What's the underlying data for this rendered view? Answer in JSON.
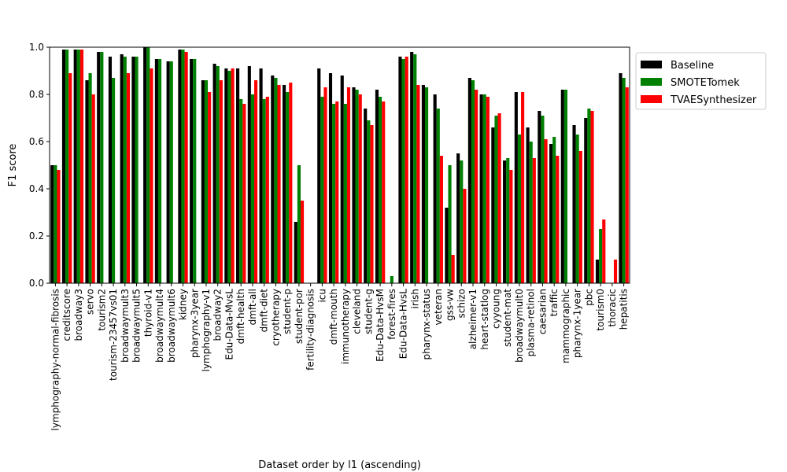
{
  "chart_data": {
    "type": "bar",
    "xlabel": "Dataset order by l1 (ascending)",
    "ylabel": "F1 score",
    "ylim": [
      0,
      1.0
    ],
    "yticks": [
      "0.0",
      "0.2",
      "0.4",
      "0.6",
      "0.8",
      "1.0"
    ],
    "grid": false,
    "legend_position": "outside-top-right",
    "categories": [
      "lymphography-normal-fibrosis",
      "creditscore",
      "broadway3",
      "servo",
      "tourism2",
      "tourism-23457vs01",
      "broadwaymult3",
      "broadwaymult5",
      "thyroid-v1",
      "broadwaymult4",
      "broadwaymult6",
      "kidney",
      "pharynx-3year",
      "lymphography-v1",
      "broadway2",
      "Edu-Data-MvsL",
      "dmft-health",
      "dmft-all",
      "dmft-diet",
      "cryotherapy",
      "student-p",
      "student-por",
      "fertility-diagnosis",
      "icu",
      "dmft-mouth",
      "immunotherapy",
      "cleveland",
      "student-g",
      "Edu-Data-HvsM",
      "forest-fires",
      "Edu-Data-HvsL",
      "irish",
      "pharynx-status",
      "veteran",
      "gss-vw",
      "schizo",
      "alzheimer-v1",
      "heart-statlog",
      "cyyoung",
      "student-mat",
      "broadwaymult0",
      "plasma-retinol",
      "caesarian",
      "traffic",
      "mammographic",
      "pharynx-1year",
      "pbc",
      "tourism0",
      "thoracic",
      "hepatitis"
    ],
    "series": [
      {
        "name": "Baseline",
        "color": "#000000",
        "values": [
          0.5,
          0.99,
          0.99,
          0.86,
          0.98,
          0.96,
          0.97,
          0.96,
          1.0,
          0.95,
          0.94,
          0.99,
          0.95,
          0.86,
          0.93,
          0.91,
          0.91,
          0.92,
          0.91,
          0.88,
          0.84,
          0.26,
          0.0,
          0.91,
          0.89,
          0.88,
          0.83,
          0.74,
          0.82,
          0.0,
          0.96,
          0.98,
          0.84,
          0.8,
          0.32,
          0.55,
          0.87,
          0.8,
          0.66,
          0.52,
          0.81,
          0.66,
          0.73,
          0.59,
          0.82,
          0.67,
          0.7,
          0.1,
          0.0,
          0.89
        ]
      },
      {
        "name": "SMOTETomek",
        "color": "#008000",
        "values": [
          0.5,
          0.99,
          0.99,
          0.89,
          0.98,
          0.87,
          0.96,
          0.96,
          1.0,
          0.95,
          0.94,
          0.99,
          0.95,
          0.86,
          0.92,
          0.9,
          0.78,
          0.8,
          0.78,
          0.87,
          0.81,
          0.5,
          0.0,
          0.79,
          0.76,
          0.76,
          0.82,
          0.69,
          0.79,
          0.03,
          0.95,
          0.97,
          0.83,
          0.74,
          0.5,
          0.52,
          0.86,
          0.8,
          0.71,
          0.53,
          0.63,
          0.6,
          0.71,
          0.62,
          0.82,
          0.63,
          0.74,
          0.23,
          0.0,
          0.87
        ]
      },
      {
        "name": "TVAESynthesizer",
        "color": "#ff0000",
        "values": [
          0.48,
          0.89,
          0.99,
          0.8,
          0.0,
          0.0,
          0.89,
          0.0,
          0.91,
          0.0,
          0.0,
          0.98,
          0.0,
          0.81,
          0.86,
          0.91,
          0.76,
          0.86,
          0.79,
          0.84,
          0.85,
          0.35,
          0.0,
          0.83,
          0.77,
          0.83,
          0.8,
          0.67,
          0.77,
          0.0,
          0.96,
          0.84,
          0.0,
          0.54,
          0.12,
          0.4,
          0.82,
          0.79,
          0.72,
          0.48,
          0.81,
          0.53,
          0.61,
          0.54,
          0.0,
          0.56,
          0.73,
          0.27,
          0.1,
          0.83
        ]
      }
    ]
  }
}
